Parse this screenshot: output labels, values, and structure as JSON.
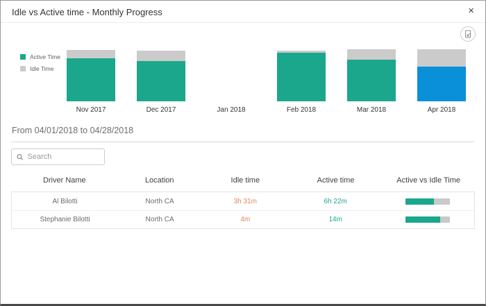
{
  "dialog": {
    "title": "Idle vs Active time - Monthly Progress",
    "close_glyph": "×"
  },
  "chart_data": {
    "type": "bar",
    "stacked": true,
    "title": "Idle vs Active time - Monthly Progress",
    "categories": [
      "Nov 2017",
      "Dec 2017",
      "Jan 2018",
      "Feb 2018",
      "Mar 2018",
      "Apr 2018"
    ],
    "series": [
      {
        "name": "Active Time",
        "color": "#1aa78c",
        "values_pct": [
          83,
          77,
          0,
          93,
          80,
          67
        ]
      },
      {
        "name": "Idle Time",
        "color": "#cbcbcb",
        "values_pct": [
          16,
          21,
          0,
          4,
          20,
          33
        ]
      }
    ],
    "highlighted_category": "Apr 2018",
    "highlight_color": "#0a90d9",
    "legend_position": "left",
    "ylim_pct": [
      0,
      100
    ],
    "grid": false
  },
  "filters": {
    "date_range": "From 04/01/2018 to 04/28/2018",
    "search_placeholder": "Search"
  },
  "table": {
    "columns": [
      "Driver Name",
      "Location",
      "Idle time",
      "Active time",
      "Active vs Idle Time"
    ],
    "rows": [
      {
        "driver": "Al Bilotti",
        "location": "North CA",
        "idle": "3h 31m",
        "active": "6h 22m",
        "active_ratio_pct": 64
      },
      {
        "driver": "Stephanie Bilotti",
        "location": "North CA",
        "idle": "4m",
        "active": "14m",
        "active_ratio_pct": 78
      }
    ]
  }
}
